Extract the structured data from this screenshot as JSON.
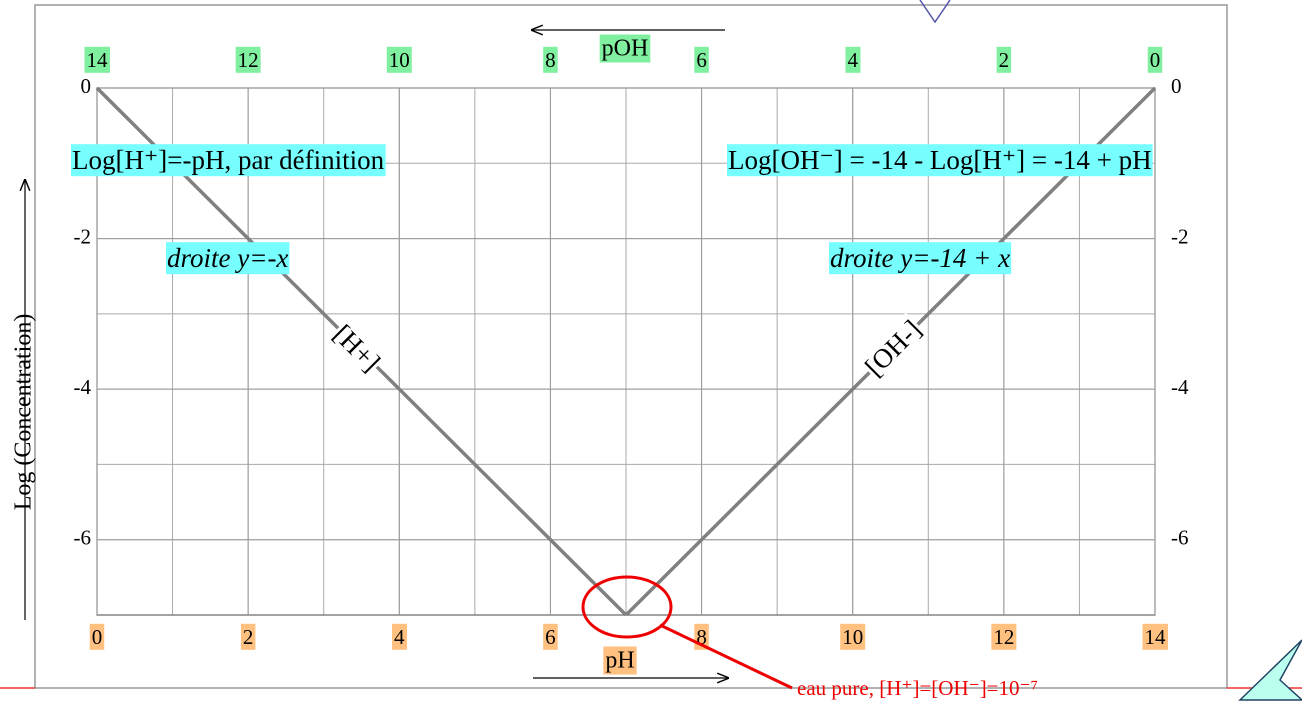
{
  "chart_data": {
    "type": "line",
    "x_label": "pH",
    "x2_label": "pOH",
    "y_label": "Log (Concentration)",
    "x": [
      0,
      7,
      14
    ],
    "xlim": [
      0,
      14
    ],
    "xticks": [
      0,
      2,
      4,
      6,
      8,
      10,
      12,
      14
    ],
    "x2lim": [
      14,
      0
    ],
    "x2ticks": [
      14,
      12,
      10,
      8,
      6,
      4,
      2,
      0
    ],
    "ylim": [
      -7,
      0
    ],
    "yticks": [
      0,
      -2,
      -4,
      -6
    ],
    "grid": true,
    "series": [
      {
        "name": "[H+]",
        "color": "#808080",
        "values": [
          0,
          -7,
          null
        ]
      },
      {
        "name": "[OH-]",
        "color": "#808080",
        "values": [
          null,
          -7,
          0
        ]
      }
    ],
    "annotations": [
      "Log[H⁺]=-pH, par définition",
      "Log[OH⁻] = -14 - Log[H⁺] = -14 + pH",
      "droite y=-x",
      "droite y=-14 + x",
      "eau pure, [H⁺]=[OH⁻]=10⁻⁷"
    ]
  }
}
